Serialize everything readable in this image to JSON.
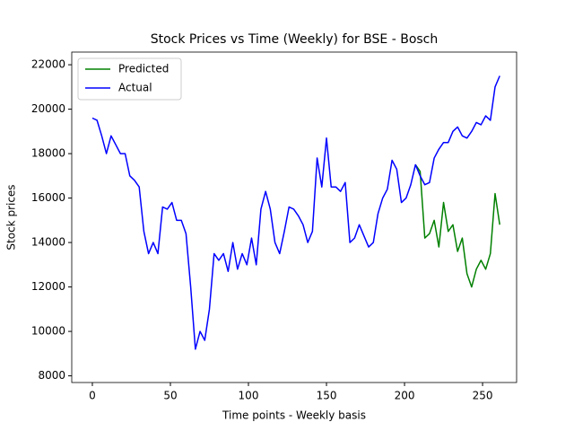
{
  "chart_data": {
    "type": "line",
    "title": "Stock Prices vs Time (Weekly) for BSE - Bosch",
    "x_label": "Time points - Weekly basis",
    "y_label": "Stock prices",
    "x": [
      0,
      3,
      6,
      9,
      12,
      15,
      18,
      21,
      24,
      27,
      30,
      33,
      36,
      39,
      42,
      45,
      48,
      51,
      54,
      57,
      60,
      63,
      66,
      69,
      72,
      75,
      78,
      81,
      84,
      87,
      90,
      93,
      96,
      99,
      102,
      105,
      108,
      111,
      114,
      117,
      120,
      123,
      126,
      129,
      132,
      135,
      138,
      141,
      144,
      147,
      150,
      153,
      156,
      159,
      162,
      165,
      168,
      171,
      174,
      177,
      180,
      183,
      186,
      189,
      192,
      195,
      198,
      201,
      204,
      207,
      210,
      213,
      216,
      219,
      222,
      225,
      228,
      231,
      234,
      237,
      240,
      243,
      246,
      249,
      252,
      255,
      258,
      261
    ],
    "series": [
      {
        "name": "Predicted",
        "color": "#008000",
        "values": [
          null,
          null,
          null,
          null,
          null,
          null,
          null,
          null,
          null,
          null,
          null,
          null,
          null,
          null,
          null,
          null,
          null,
          null,
          null,
          null,
          null,
          null,
          null,
          null,
          null,
          null,
          null,
          null,
          null,
          null,
          null,
          null,
          null,
          null,
          null,
          null,
          null,
          null,
          null,
          null,
          null,
          null,
          null,
          null,
          null,
          null,
          null,
          null,
          null,
          null,
          null,
          null,
          null,
          null,
          null,
          null,
          null,
          null,
          null,
          null,
          null,
          null,
          null,
          null,
          null,
          null,
          null,
          null,
          null,
          17500,
          17200,
          14200,
          14400,
          15000,
          13800,
          15800,
          14500,
          14800,
          13600,
          14200,
          12600,
          12000,
          12800,
          13200,
          12800,
          13500,
          16200,
          14800
        ]
      },
      {
        "name": "Actual",
        "color": "#0000ff",
        "values": [
          19600,
          19500,
          18800,
          18000,
          18800,
          18400,
          18000,
          18000,
          17000,
          16800,
          16500,
          14500,
          13500,
          14000,
          13500,
          15600,
          15500,
          15800,
          15000,
          15000,
          14400,
          12000,
          9200,
          10000,
          9600,
          11000,
          13500,
          13200,
          13500,
          12700,
          14000,
          12800,
          13500,
          13000,
          14200,
          13000,
          15500,
          16300,
          15500,
          14000,
          13500,
          14500,
          15600,
          15500,
          15200,
          14800,
          14000,
          14500,
          17800,
          16500,
          18700,
          16500,
          16500,
          16300,
          16700,
          14000,
          14200,
          14800,
          14300,
          13800,
          14000,
          15300,
          16000,
          16400,
          17700,
          17300,
          15800,
          16000,
          16600,
          17500,
          17000,
          16600,
          16700,
          17800,
          18200,
          18500,
          18500,
          19000,
          19200,
          18800,
          18700,
          19000,
          19400,
          19300,
          19700,
          19500,
          21000,
          21500
        ]
      }
    ],
    "xlim": [
      -13.2,
      271.8
    ],
    "ylim": [
      7700,
      22570
    ],
    "xticks": [
      0,
      50,
      100,
      150,
      200,
      250
    ],
    "yticks": [
      8000,
      10000,
      12000,
      14000,
      16000,
      18000,
      20000,
      22000
    ],
    "legend": "upper left"
  }
}
